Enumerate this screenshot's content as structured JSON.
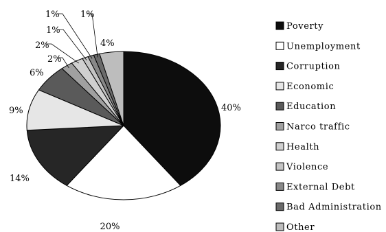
{
  "chart_data": {
    "type": "pie",
    "title": "",
    "legend_position": "right",
    "slices": [
      {
        "label": "Poverty",
        "value": 40,
        "display": "40%",
        "color": "#0d0d0d"
      },
      {
        "label": "Unemployment",
        "value": 20,
        "display": "20%",
        "color": "#ffffff"
      },
      {
        "label": "Corruption",
        "value": 14,
        "display": "14%",
        "color": "#262626"
      },
      {
        "label": "Economic",
        "value": 9,
        "display": "9%",
        "color": "#e6e6e6"
      },
      {
        "label": "Education",
        "value": 6,
        "display": "6%",
        "color": "#5a5a5a"
      },
      {
        "label": "Narco traffic",
        "value": 2,
        "display": "2%",
        "color": "#a0a0a0"
      },
      {
        "label": "Health",
        "value": 2,
        "display": "2%",
        "color": "#d0d0d0"
      },
      {
        "label": "Violence",
        "value": 1,
        "display": "1%",
        "color": "#c4c4c4"
      },
      {
        "label": "External Debt",
        "value": 1,
        "display": "1%",
        "color": "#888888"
      },
      {
        "label": "Bad Administration",
        "value": 1,
        "display": "1%",
        "color": "#6a6a6a"
      },
      {
        "label": "Other",
        "value": 4,
        "display": "4%",
        "color": "#bdbdbd"
      }
    ]
  }
}
